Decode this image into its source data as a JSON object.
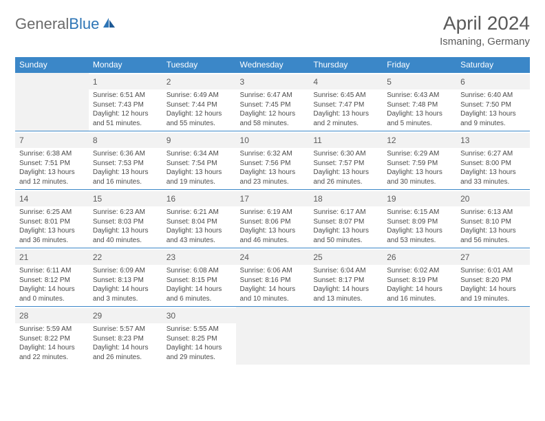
{
  "brand": {
    "part1": "General",
    "part2": "Blue"
  },
  "title": "April 2024",
  "location": "Ismaning, Germany",
  "colors": {
    "header_bg": "#3b87c8",
    "header_text": "#ffffff",
    "daynum_bg": "#f2f2f2",
    "border": "#3b87c8",
    "text": "#4a4a4a",
    "logo_gray": "#6a6a6a",
    "logo_blue": "#2e75b6"
  },
  "weekdays": [
    "Sunday",
    "Monday",
    "Tuesday",
    "Wednesday",
    "Thursday",
    "Friday",
    "Saturday"
  ],
  "layout": {
    "columns": 7,
    "rows": 5,
    "first_weekday_index": 1,
    "days_in_month": 30
  },
  "days": {
    "1": {
      "sunrise": "6:51 AM",
      "sunset": "7:43 PM",
      "daylight": "12 hours and 51 minutes."
    },
    "2": {
      "sunrise": "6:49 AM",
      "sunset": "7:44 PM",
      "daylight": "12 hours and 55 minutes."
    },
    "3": {
      "sunrise": "6:47 AM",
      "sunset": "7:45 PM",
      "daylight": "12 hours and 58 minutes."
    },
    "4": {
      "sunrise": "6:45 AM",
      "sunset": "7:47 PM",
      "daylight": "13 hours and 2 minutes."
    },
    "5": {
      "sunrise": "6:43 AM",
      "sunset": "7:48 PM",
      "daylight": "13 hours and 5 minutes."
    },
    "6": {
      "sunrise": "6:40 AM",
      "sunset": "7:50 PM",
      "daylight": "13 hours and 9 minutes."
    },
    "7": {
      "sunrise": "6:38 AM",
      "sunset": "7:51 PM",
      "daylight": "13 hours and 12 minutes."
    },
    "8": {
      "sunrise": "6:36 AM",
      "sunset": "7:53 PM",
      "daylight": "13 hours and 16 minutes."
    },
    "9": {
      "sunrise": "6:34 AM",
      "sunset": "7:54 PM",
      "daylight": "13 hours and 19 minutes."
    },
    "10": {
      "sunrise": "6:32 AM",
      "sunset": "7:56 PM",
      "daylight": "13 hours and 23 minutes."
    },
    "11": {
      "sunrise": "6:30 AM",
      "sunset": "7:57 PM",
      "daylight": "13 hours and 26 minutes."
    },
    "12": {
      "sunrise": "6:29 AM",
      "sunset": "7:59 PM",
      "daylight": "13 hours and 30 minutes."
    },
    "13": {
      "sunrise": "6:27 AM",
      "sunset": "8:00 PM",
      "daylight": "13 hours and 33 minutes."
    },
    "14": {
      "sunrise": "6:25 AM",
      "sunset": "8:01 PM",
      "daylight": "13 hours and 36 minutes."
    },
    "15": {
      "sunrise": "6:23 AM",
      "sunset": "8:03 PM",
      "daylight": "13 hours and 40 minutes."
    },
    "16": {
      "sunrise": "6:21 AM",
      "sunset": "8:04 PM",
      "daylight": "13 hours and 43 minutes."
    },
    "17": {
      "sunrise": "6:19 AM",
      "sunset": "8:06 PM",
      "daylight": "13 hours and 46 minutes."
    },
    "18": {
      "sunrise": "6:17 AM",
      "sunset": "8:07 PM",
      "daylight": "13 hours and 50 minutes."
    },
    "19": {
      "sunrise": "6:15 AM",
      "sunset": "8:09 PM",
      "daylight": "13 hours and 53 minutes."
    },
    "20": {
      "sunrise": "6:13 AM",
      "sunset": "8:10 PM",
      "daylight": "13 hours and 56 minutes."
    },
    "21": {
      "sunrise": "6:11 AM",
      "sunset": "8:12 PM",
      "daylight": "14 hours and 0 minutes."
    },
    "22": {
      "sunrise": "6:09 AM",
      "sunset": "8:13 PM",
      "daylight": "14 hours and 3 minutes."
    },
    "23": {
      "sunrise": "6:08 AM",
      "sunset": "8:15 PM",
      "daylight": "14 hours and 6 minutes."
    },
    "24": {
      "sunrise": "6:06 AM",
      "sunset": "8:16 PM",
      "daylight": "14 hours and 10 minutes."
    },
    "25": {
      "sunrise": "6:04 AM",
      "sunset": "8:17 PM",
      "daylight": "14 hours and 13 minutes."
    },
    "26": {
      "sunrise": "6:02 AM",
      "sunset": "8:19 PM",
      "daylight": "14 hours and 16 minutes."
    },
    "27": {
      "sunrise": "6:01 AM",
      "sunset": "8:20 PM",
      "daylight": "14 hours and 19 minutes."
    },
    "28": {
      "sunrise": "5:59 AM",
      "sunset": "8:22 PM",
      "daylight": "14 hours and 22 minutes."
    },
    "29": {
      "sunrise": "5:57 AM",
      "sunset": "8:23 PM",
      "daylight": "14 hours and 26 minutes."
    },
    "30": {
      "sunrise": "5:55 AM",
      "sunset": "8:25 PM",
      "daylight": "14 hours and 29 minutes."
    }
  },
  "labels": {
    "sunrise": "Sunrise: ",
    "sunset": "Sunset: ",
    "daylight": "Daylight: "
  }
}
